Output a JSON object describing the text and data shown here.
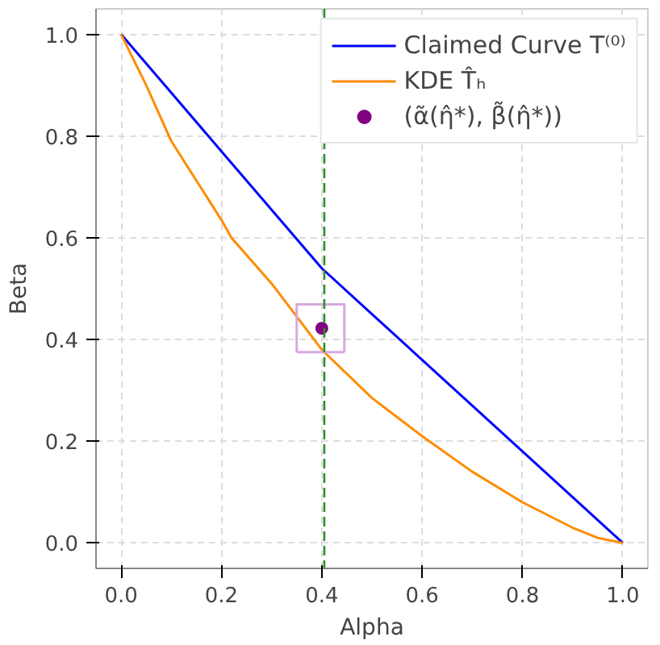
{
  "chart_data": {
    "type": "line",
    "xlabel": "Alpha",
    "ylabel": "Beta",
    "xlim": [
      -0.05,
      1.05
    ],
    "ylim": [
      -0.05,
      1.05
    ],
    "xticks": [
      {
        "value": 0,
        "label": "0.0"
      },
      {
        "value": 0.2,
        "label": "0.2"
      },
      {
        "value": 0.4,
        "label": "0.4"
      },
      {
        "value": 0.6,
        "label": "0.6"
      },
      {
        "value": 0.8,
        "label": "0.8"
      },
      {
        "value": 1,
        "label": "1.0"
      }
    ],
    "yticks": [
      {
        "value": 0,
        "label": "0.0"
      },
      {
        "value": 0.2,
        "label": "0.2"
      },
      {
        "value": 0.4,
        "label": "0.4"
      },
      {
        "value": 0.6,
        "label": "0.6"
      },
      {
        "value": 0.8,
        "label": "0.8"
      },
      {
        "value": 1,
        "label": "1.0"
      }
    ],
    "grid": true,
    "legend": "top right",
    "series": [
      {
        "name": "Claimed Curve T⁽⁰⁾",
        "color": "#0000ff",
        "x": [
          0,
          0.1,
          0.2,
          0.3,
          0.4,
          0.5,
          0.6,
          0.7,
          0.8,
          0.9,
          1
        ],
        "values": [
          1,
          0.885,
          0.77,
          0.655,
          0.54,
          0.45,
          0.36,
          0.27,
          0.18,
          0.09,
          0
        ]
      },
      {
        "name": "KDE T̂ₕ",
        "color": "#ff8c00",
        "x": [
          0,
          0.05,
          0.1,
          0.2,
          0.22,
          0.3,
          0.4,
          0.5,
          0.6,
          0.7,
          0.8,
          0.9,
          0.95,
          1
        ],
        "values": [
          1,
          0.9,
          0.79,
          0.635,
          0.6,
          0.51,
          0.38,
          0.285,
          0.21,
          0.14,
          0.08,
          0.03,
          0.01,
          0
        ]
      },
      {
        "name": "(α̃(η̂*), β̃(η̂*))",
        "color": "#800080",
        "type": "scatter",
        "marker": "circle",
        "x": [
          0.4
        ],
        "values": [
          0.422
        ]
      },
      {
        "color": "#d8a8e0",
        "type": "line",
        "x": [
          0.35,
          0.35,
          0.445,
          0.445
        ],
        "values": [
          0.375,
          0.469,
          0.469,
          0.375
        ]
      },
      {
        "color": "#d8a8e0",
        "type": "line",
        "x": [
          0.35,
          0.445
        ],
        "values": [
          0.375,
          0.375
        ]
      }
    ],
    "ref_lines": [
      {
        "axis": "x",
        "value": 0.405,
        "color": "#2e8b2e",
        "line_style": "dashed"
      }
    ]
  }
}
